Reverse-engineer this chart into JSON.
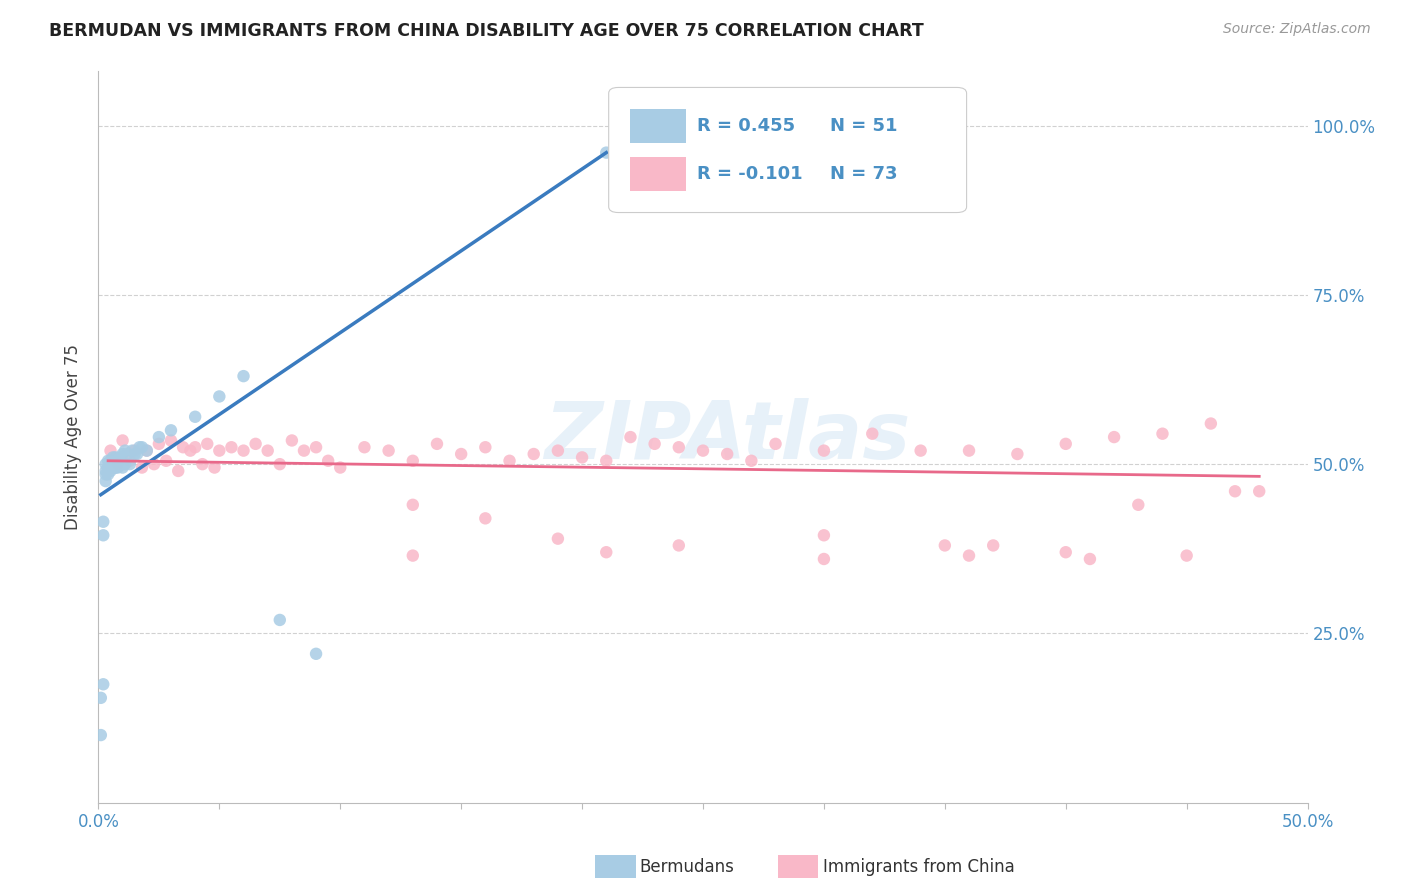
{
  "title": "BERMUDAN VS IMMIGRANTS FROM CHINA DISABILITY AGE OVER 75 CORRELATION CHART",
  "source": "Source: ZipAtlas.com",
  "ylabel": "Disability Age Over 75",
  "legend_label1": "Bermudans",
  "legend_label2": "Immigrants from China",
  "r1": 0.455,
  "n1": 51,
  "r2": -0.101,
  "n2": 73,
  "watermark": "ZIPAtlas",
  "xlim": [
    0.0,
    0.5
  ],
  "ylim": [
    0.0,
    1.08
  ],
  "right_yticks": [
    0.25,
    0.5,
    0.75,
    1.0
  ],
  "right_yticklabels": [
    "25.0%",
    "50.0%",
    "75.0%",
    "100.0%"
  ],
  "color_blue": "#a8cce4",
  "color_blue_line": "#3a7bbf",
  "color_pink": "#f9b8c8",
  "color_pink_line": "#e8698a",
  "color_text_blue": "#4a90c4",
  "color_title": "#222222",
  "marker_size": 80,
  "blue_scatter_x": [
    0.001,
    0.001,
    0.002,
    0.002,
    0.002,
    0.003,
    0.003,
    0.003,
    0.003,
    0.004,
    0.004,
    0.004,
    0.004,
    0.005,
    0.005,
    0.005,
    0.005,
    0.006,
    0.006,
    0.006,
    0.006,
    0.007,
    0.007,
    0.007,
    0.007,
    0.008,
    0.008,
    0.008,
    0.009,
    0.009,
    0.01,
    0.01,
    0.01,
    0.011,
    0.011,
    0.012,
    0.013,
    0.014,
    0.015,
    0.016,
    0.017,
    0.018,
    0.02,
    0.025,
    0.03,
    0.04,
    0.05,
    0.06,
    0.075,
    0.09,
    0.21
  ],
  "blue_scatter_y": [
    0.155,
    0.1,
    0.395,
    0.415,
    0.175,
    0.49,
    0.5,
    0.485,
    0.475,
    0.495,
    0.505,
    0.495,
    0.485,
    0.5,
    0.495,
    0.49,
    0.505,
    0.5,
    0.495,
    0.505,
    0.51,
    0.495,
    0.51,
    0.5,
    0.495,
    0.5,
    0.495,
    0.505,
    0.5,
    0.51,
    0.5,
    0.495,
    0.515,
    0.52,
    0.5,
    0.515,
    0.5,
    0.52,
    0.515,
    0.515,
    0.525,
    0.525,
    0.52,
    0.54,
    0.55,
    0.57,
    0.6,
    0.63,
    0.27,
    0.22,
    0.96
  ],
  "pink_scatter_x": [
    0.005,
    0.008,
    0.01,
    0.013,
    0.015,
    0.018,
    0.02,
    0.023,
    0.025,
    0.028,
    0.03,
    0.033,
    0.035,
    0.038,
    0.04,
    0.043,
    0.045,
    0.048,
    0.05,
    0.055,
    0.06,
    0.065,
    0.07,
    0.075,
    0.08,
    0.085,
    0.09,
    0.095,
    0.1,
    0.11,
    0.12,
    0.13,
    0.14,
    0.15,
    0.16,
    0.17,
    0.18,
    0.19,
    0.2,
    0.21,
    0.22,
    0.23,
    0.24,
    0.25,
    0.26,
    0.27,
    0.28,
    0.3,
    0.32,
    0.34,
    0.36,
    0.38,
    0.4,
    0.42,
    0.44,
    0.46,
    0.48,
    0.3,
    0.35,
    0.13,
    0.16,
    0.19,
    0.24,
    0.37,
    0.41,
    0.45,
    0.13,
    0.21,
    0.3,
    0.36,
    0.4,
    0.43,
    0.47
  ],
  "pink_scatter_y": [
    0.52,
    0.5,
    0.535,
    0.505,
    0.52,
    0.495,
    0.52,
    0.5,
    0.53,
    0.505,
    0.535,
    0.49,
    0.525,
    0.52,
    0.525,
    0.5,
    0.53,
    0.495,
    0.52,
    0.525,
    0.52,
    0.53,
    0.52,
    0.5,
    0.535,
    0.52,
    0.525,
    0.505,
    0.495,
    0.525,
    0.52,
    0.505,
    0.53,
    0.515,
    0.525,
    0.505,
    0.515,
    0.52,
    0.51,
    0.505,
    0.54,
    0.53,
    0.525,
    0.52,
    0.515,
    0.505,
    0.53,
    0.52,
    0.545,
    0.52,
    0.52,
    0.515,
    0.53,
    0.54,
    0.545,
    0.56,
    0.46,
    0.395,
    0.38,
    0.44,
    0.42,
    0.39,
    0.38,
    0.38,
    0.36,
    0.365,
    0.365,
    0.37,
    0.36,
    0.365,
    0.37,
    0.44,
    0.46
  ],
  "blue_trendline_x": [
    0.001,
    0.21
  ],
  "blue_trendline_y": [
    0.455,
    0.96
  ],
  "pink_trendline_x": [
    0.004,
    0.48
  ],
  "pink_trendline_y": [
    0.505,
    0.482
  ]
}
